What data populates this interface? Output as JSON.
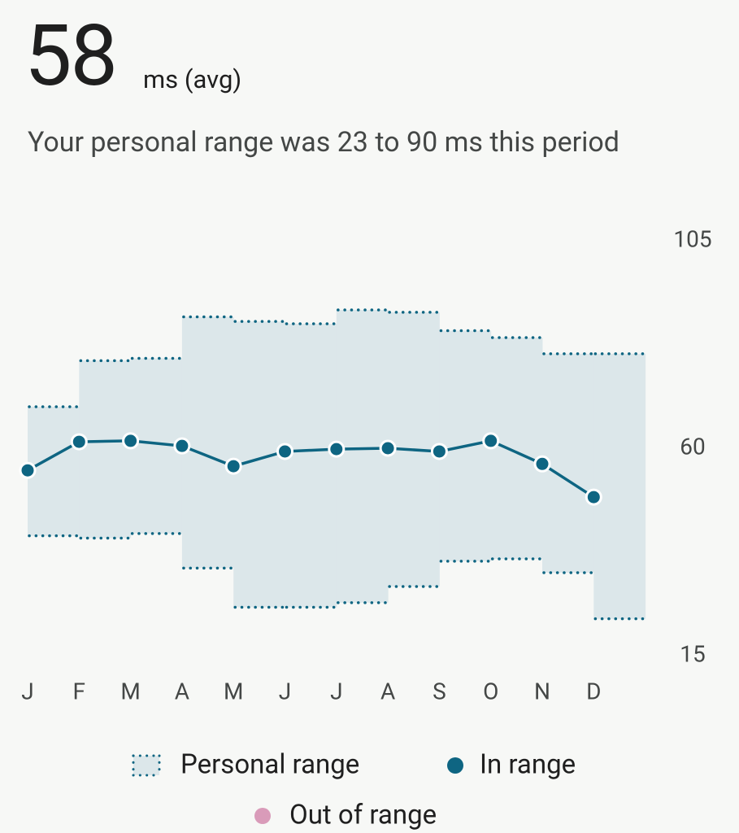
{
  "header": {
    "value": "58",
    "unit": "ms (avg)",
    "description": "Your personal range was 23 to 90 ms this period"
  },
  "chart_data": {
    "type": "line",
    "categories": [
      "J",
      "F",
      "M",
      "A",
      "M",
      "J",
      "J",
      "A",
      "S",
      "O",
      "N",
      "D"
    ],
    "range": {
      "name": "Personal range",
      "color": "#dce7ea",
      "border_color": "#0e6582",
      "upper": [
        69,
        79,
        79.5,
        88.5,
        87.5,
        87,
        90,
        89.5,
        85.5,
        84,
        80.5,
        80.5
      ],
      "lower": [
        41,
        40.5,
        41.5,
        34,
        25.5,
        25.5,
        26.5,
        30,
        35.5,
        36,
        33,
        23
      ]
    },
    "series": [
      {
        "name": "In range",
        "color": "#0e6582",
        "values": [
          55.2,
          61.4,
          61.6,
          60.5,
          56.1,
          59.3,
          59.8,
          60,
          59.3,
          61.6,
          56.6,
          49.4
        ]
      },
      {
        "name": "Out of range",
        "color": "#d99bb9",
        "values": [
          null,
          null,
          null,
          null,
          null,
          null,
          null,
          null,
          null,
          null,
          null,
          null
        ]
      }
    ],
    "ylim": [
      15,
      105
    ],
    "yticks": [
      15,
      60,
      105
    ],
    "grid": false
  }
}
